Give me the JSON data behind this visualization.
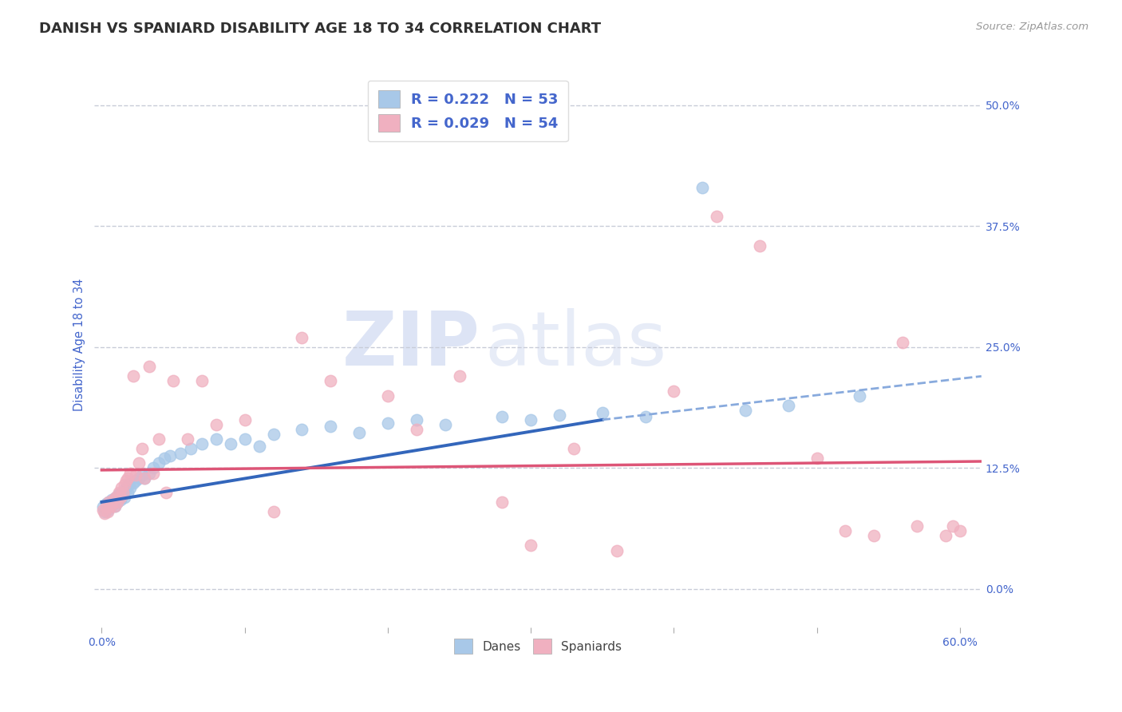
{
  "title": "DANISH VS SPANIARD DISABILITY AGE 18 TO 34 CORRELATION CHART",
  "source_text": "Source: ZipAtlas.com",
  "ylabel": "Disability Age 18 to 34",
  "xlim": [
    -0.005,
    0.615
  ],
  "ylim": [
    -0.04,
    0.545
  ],
  "xticks": [
    0.0,
    0.6
  ],
  "xtick_labels": [
    "0.0%",
    "60.0%"
  ],
  "xticks_minor": [
    0.1,
    0.2,
    0.3,
    0.4,
    0.5
  ],
  "yticks": [
    0.0,
    0.125,
    0.25,
    0.375,
    0.5
  ],
  "ytick_labels": [
    "0.0%",
    "12.5%",
    "25.0%",
    "37.5%",
    "50.0%"
  ],
  "grid_color": "#c8ccd8",
  "background_color": "#ffffff",
  "danes_color": "#a8c8e8",
  "spaniards_color": "#f0b0c0",
  "danes_line_color": "#3366bb",
  "danes_line_dashed_color": "#88aadd",
  "spaniards_line_color": "#dd5577",
  "danes_R": 0.222,
  "danes_N": 53,
  "spaniards_R": 0.029,
  "spaniards_N": 54,
  "tick_label_color": "#4466cc",
  "title_color": "#303030",
  "source_color": "#999999",
  "danes_scatter_x": [
    0.001,
    0.002,
    0.003,
    0.004,
    0.005,
    0.006,
    0.007,
    0.008,
    0.009,
    0.01,
    0.011,
    0.012,
    0.013,
    0.014,
    0.015,
    0.016,
    0.017,
    0.018,
    0.019,
    0.02,
    0.022,
    0.024,
    0.026,
    0.028,
    0.03,
    0.033,
    0.036,
    0.04,
    0.044,
    0.048,
    0.055,
    0.062,
    0.07,
    0.08,
    0.09,
    0.1,
    0.11,
    0.12,
    0.14,
    0.16,
    0.18,
    0.2,
    0.22,
    0.24,
    0.28,
    0.3,
    0.32,
    0.35,
    0.38,
    0.42,
    0.45,
    0.48,
    0.53
  ],
  "danes_scatter_y": [
    0.085,
    0.08,
    0.088,
    0.082,
    0.09,
    0.085,
    0.092,
    0.088,
    0.086,
    0.095,
    0.09,
    0.098,
    0.092,
    0.095,
    0.1,
    0.095,
    0.105,
    0.1,
    0.108,
    0.105,
    0.11,
    0.112,
    0.115,
    0.118,
    0.115,
    0.12,
    0.125,
    0.13,
    0.135,
    0.138,
    0.14,
    0.145,
    0.15,
    0.155,
    0.15,
    0.155,
    0.148,
    0.16,
    0.165,
    0.168,
    0.162,
    0.172,
    0.175,
    0.17,
    0.178,
    0.175,
    0.18,
    0.182,
    0.178,
    0.415,
    0.185,
    0.19,
    0.2
  ],
  "spaniards_scatter_x": [
    0.001,
    0.002,
    0.003,
    0.004,
    0.005,
    0.006,
    0.007,
    0.008,
    0.009,
    0.01,
    0.011,
    0.012,
    0.013,
    0.014,
    0.015,
    0.016,
    0.017,
    0.018,
    0.02,
    0.022,
    0.024,
    0.026,
    0.028,
    0.03,
    0.033,
    0.036,
    0.04,
    0.045,
    0.05,
    0.06,
    0.07,
    0.08,
    0.1,
    0.12,
    0.14,
    0.16,
    0.2,
    0.22,
    0.25,
    0.28,
    0.3,
    0.33,
    0.36,
    0.4,
    0.43,
    0.46,
    0.5,
    0.52,
    0.54,
    0.56,
    0.57,
    0.59,
    0.595,
    0.6
  ],
  "spaniards_scatter_y": [
    0.082,
    0.078,
    0.085,
    0.08,
    0.09,
    0.085,
    0.088,
    0.092,
    0.086,
    0.095,
    0.09,
    0.1,
    0.095,
    0.105,
    0.1,
    0.108,
    0.112,
    0.115,
    0.12,
    0.22,
    0.118,
    0.13,
    0.145,
    0.115,
    0.23,
    0.12,
    0.155,
    0.1,
    0.215,
    0.155,
    0.215,
    0.17,
    0.175,
    0.08,
    0.26,
    0.215,
    0.2,
    0.165,
    0.22,
    0.09,
    0.045,
    0.145,
    0.04,
    0.205,
    0.385,
    0.355,
    0.135,
    0.06,
    0.055,
    0.255,
    0.065,
    0.055,
    0.065,
    0.06
  ],
  "danes_trend_solid": [
    0.0,
    0.35,
    0.09,
    0.175
  ],
  "danes_trend_dashed": [
    0.35,
    0.615,
    0.175,
    0.22
  ],
  "spaniards_trend": [
    0.0,
    0.615,
    0.123,
    0.132
  ],
  "watermark_zip": "ZIP",
  "watermark_atlas": "atlas",
  "zip_color": "#d0d8ee",
  "atlas_color": "#c8d0e8"
}
